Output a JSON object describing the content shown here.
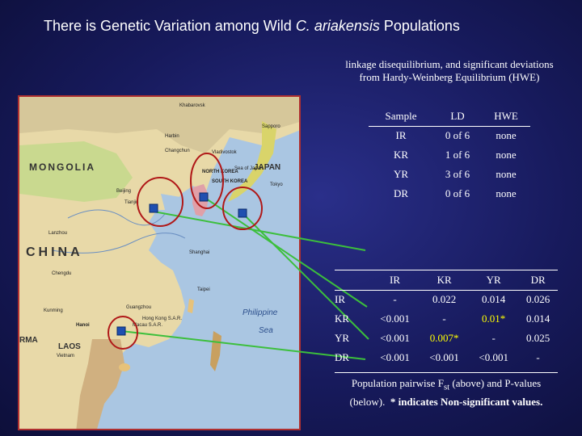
{
  "slide": {
    "title_prefix": "There is Genetic Variation among Wild ",
    "title_species": "C. ariakensis",
    "title_suffix": " Populations"
  },
  "hwe": {
    "caption": "linkage disequilibrium, and significant deviations from Hardy-Weinberg Equilibrium (HWE)",
    "headers": [
      "Sample",
      "LD",
      "HWE"
    ],
    "rows": [
      [
        "IR",
        "0 of 6",
        "none"
      ],
      [
        "KR",
        "1 of 6",
        "none"
      ],
      [
        "YR",
        "3 of 6",
        "none"
      ],
      [
        "DR",
        "0 of 6",
        "none"
      ]
    ]
  },
  "fst": {
    "col_headers": [
      "IR",
      "KR",
      "YR",
      "DR"
    ],
    "rows": [
      {
        "label": "IR",
        "cells": [
          "-",
          "0.022",
          "0.014",
          "0.026"
        ]
      },
      {
        "label": "KR",
        "cells": [
          "<0.001",
          "-",
          "0.01*",
          "0.014"
        ]
      },
      {
        "label": "YR",
        "cells": [
          "<0.001",
          "0.007*",
          "-",
          "0.025"
        ]
      },
      {
        "label": "DR",
        "cells": [
          "<0.001",
          "<0.001",
          "<0.001",
          "-"
        ]
      }
    ],
    "caption_line1": "Population pairwise F",
    "caption_sub": "st",
    "caption_line1_rest": " (above) and P-values",
    "caption_line2_a": "(below).",
    "caption_line2_b": "* indicates Non-significant values.",
    "highlight_color": "#ffff00"
  },
  "map": {
    "labels": {
      "mongolia": "MONGOLIA",
      "china": "CHINA",
      "japan": "JAPAN",
      "north_korea": "NORTH KOREA",
      "south_korea": "SOUTH KOREA",
      "laos": "LAOS",
      "vietnam": "Vietnam",
      "burma": "RMA",
      "philippine_sea": "Philippine",
      "sea": "Sea",
      "sea_of_japan": "Sea of Japan",
      "khabarovsk": "Khabarovsk",
      "harbin": "Harbin",
      "changchun": "Changchun",
      "vladivostok": "Vladivostok",
      "beijing": "Beijing",
      "tianjin": "Tianjin",
      "shanghai": "Shanghai",
      "hong_kong": "Hong Kong S.A.R.",
      "macau": "Macau S.A.R.",
      "hanoi": "Hanoi",
      "taipei": "Taipei",
      "sapporo": "Sapporo",
      "tokyo": "Tokyo",
      "lanzhou": "Lanzhou",
      "chengdu": "Chengdu",
      "kunming": "Kunming",
      "guangzhou": "Guangzhou"
    },
    "colors": {
      "circle": "#b01818",
      "line": "#3cbf3c",
      "marker": "#1f4fb0"
    }
  }
}
